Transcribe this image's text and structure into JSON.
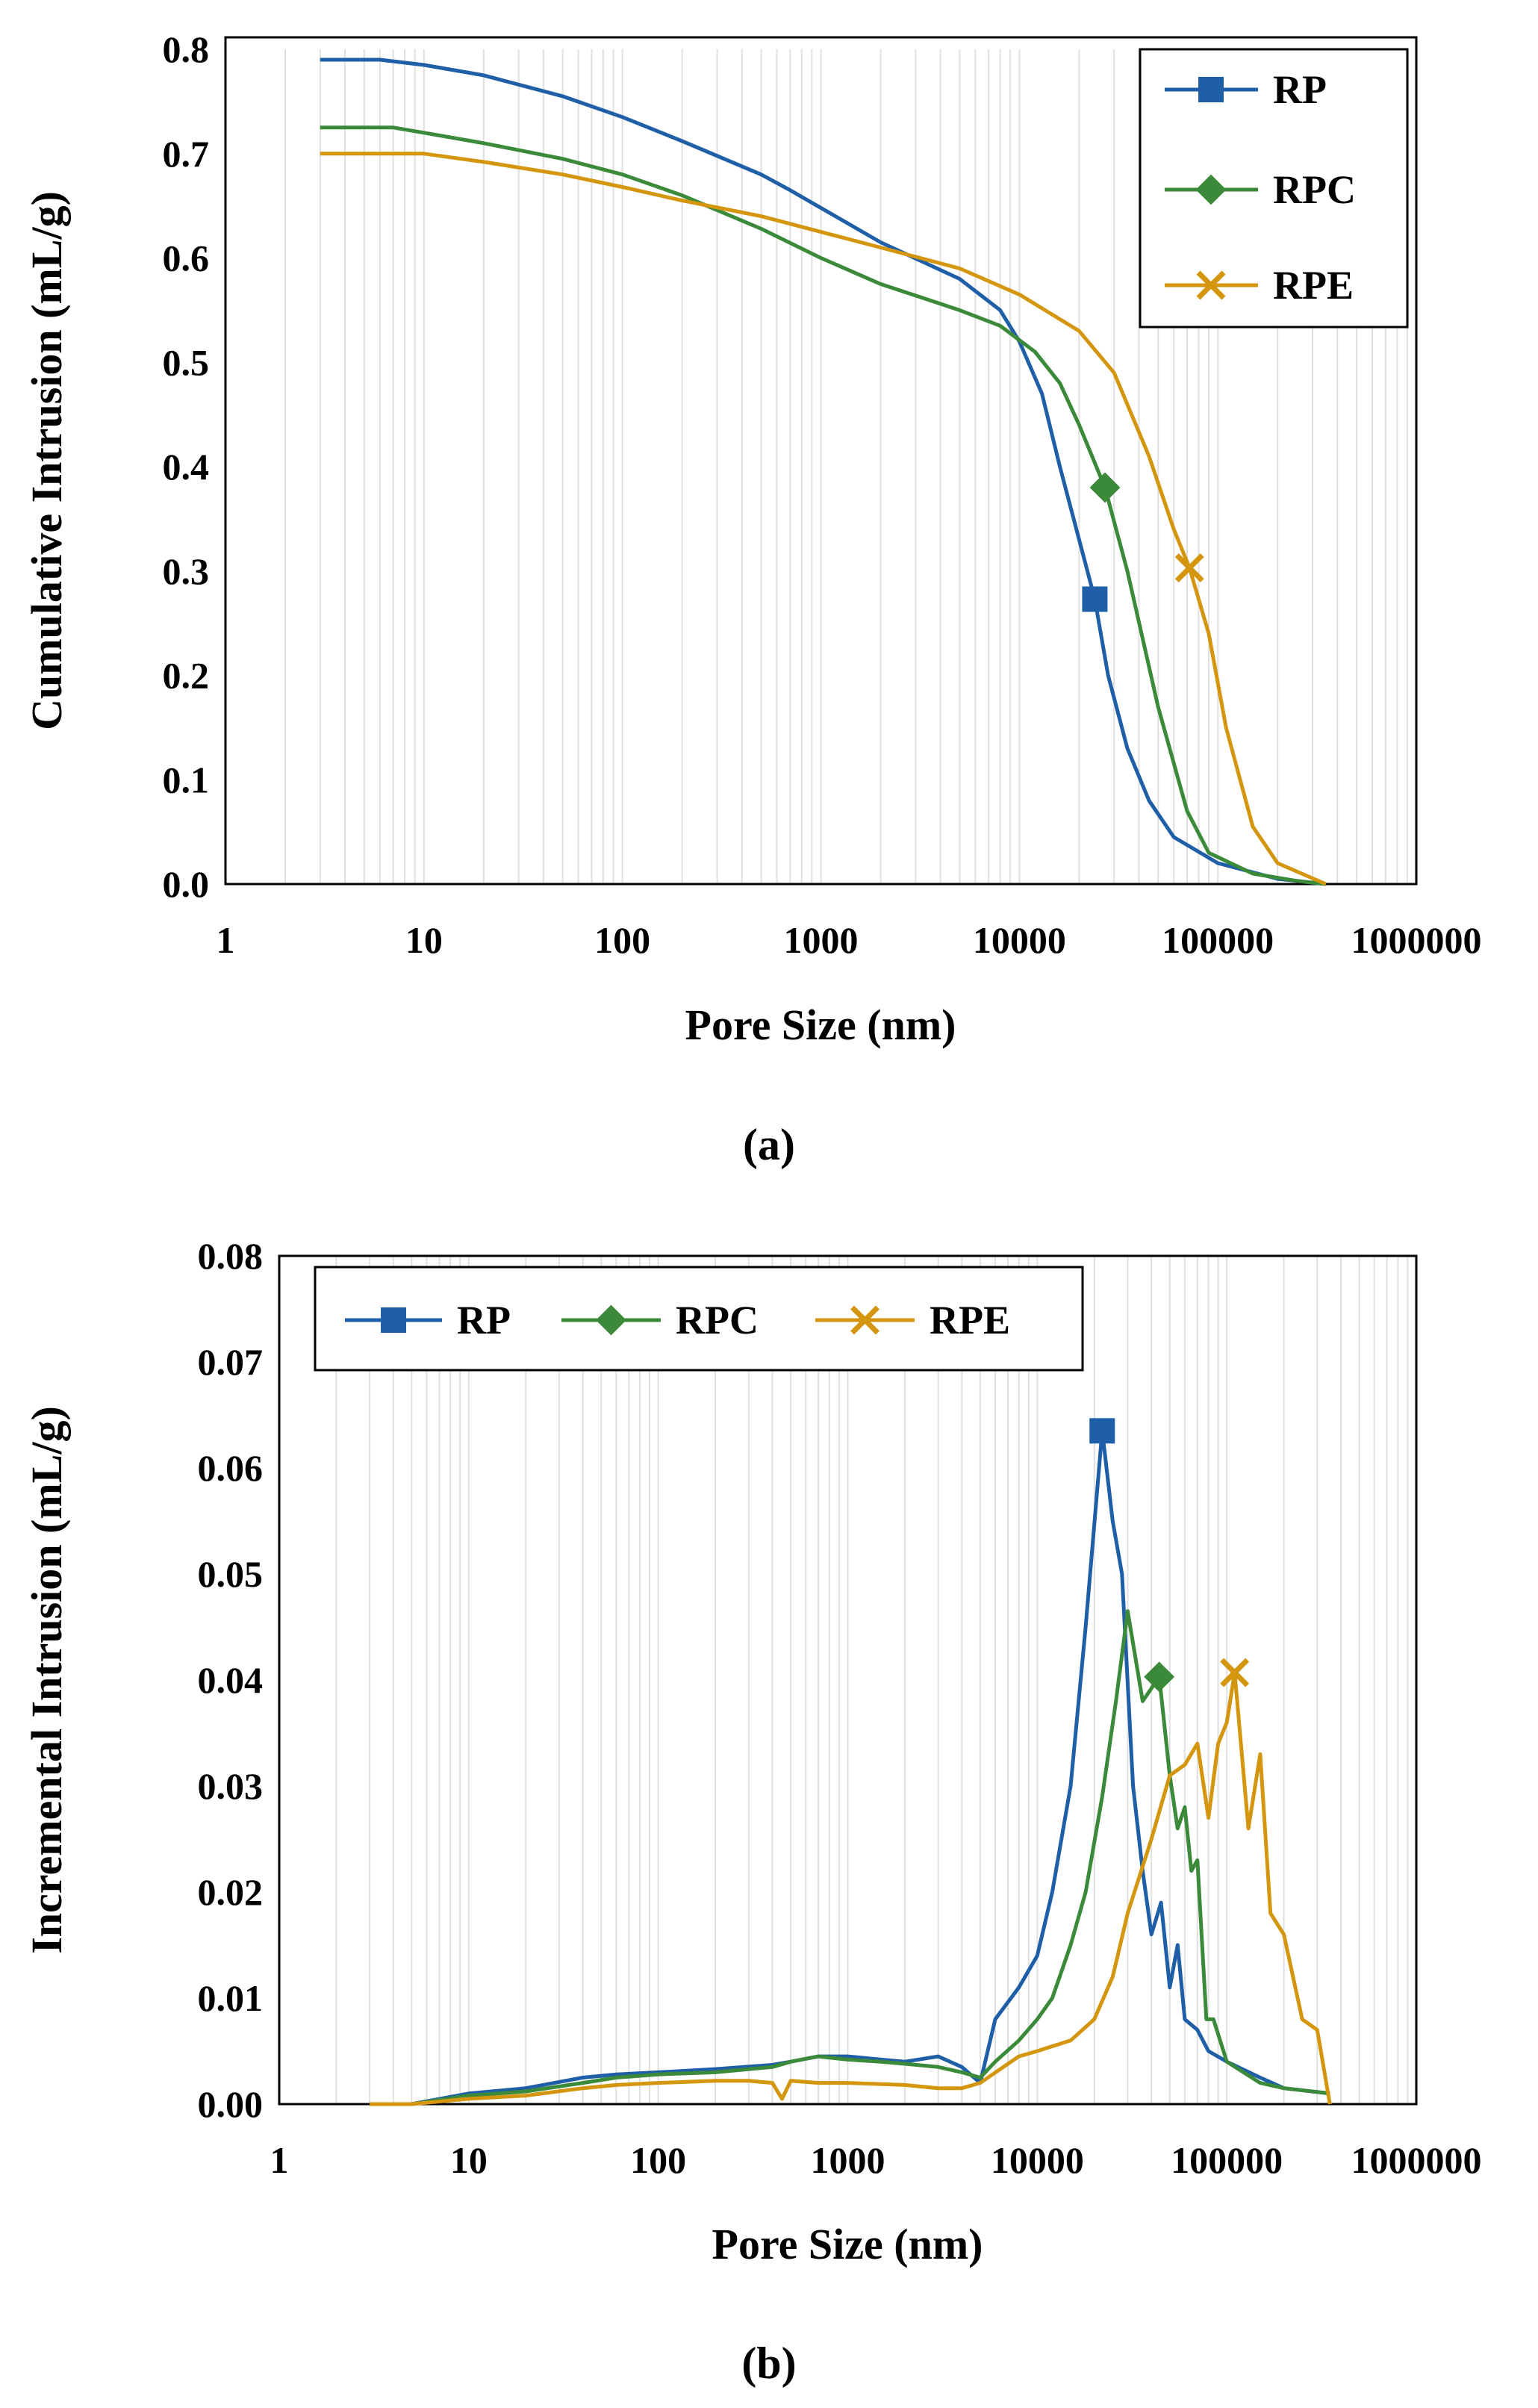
{
  "chart_data": [
    {
      "type": "line",
      "panel_label": "(a)",
      "xlabel": "Pore Size (nm)",
      "ylabel": "Cumulative Intrusion (mL/g)",
      "xscale": "log",
      "xlim": [
        1,
        1000000
      ],
      "ylim": [
        0,
        0.8
      ],
      "xticks": [
        1,
        10,
        100,
        1000,
        10000,
        100000,
        1000000
      ],
      "xtick_labels": [
        "1",
        "10",
        "100",
        "1000",
        "10000",
        "100000",
        "1000000"
      ],
      "yticks": [
        0,
        0.1,
        0.2,
        0.3,
        0.4,
        0.5,
        0.6,
        0.7,
        0.8
      ],
      "ytick_labels": [
        "0.0",
        "0.1",
        "0.2",
        "0.3",
        "0.4",
        "0.5",
        "0.6",
        "0.7",
        "0.8"
      ],
      "grid": true,
      "legend_position": "top-right",
      "series": [
        {
          "name": "RP",
          "color": "#1f5fa8",
          "marker": "square",
          "marker_at": [
            24000,
            0.273
          ],
          "x": [
            3,
            6,
            10,
            20,
            50,
            100,
            200,
            500,
            700,
            1000,
            2000,
            5000,
            8000,
            10000,
            13000,
            16000,
            20000,
            24000,
            28000,
            35000,
            45000,
            60000,
            100000,
            200000,
            350000
          ],
          "y": [
            0.79,
            0.79,
            0.785,
            0.775,
            0.755,
            0.735,
            0.712,
            0.68,
            0.665,
            0.648,
            0.615,
            0.58,
            0.55,
            0.52,
            0.47,
            0.4,
            0.33,
            0.273,
            0.2,
            0.13,
            0.08,
            0.045,
            0.02,
            0.005,
            0.0
          ]
        },
        {
          "name": "RPC",
          "color": "#3a8a3a",
          "marker": "diamond",
          "marker_at": [
            27000,
            0.38
          ],
          "x": [
            3,
            7,
            10,
            20,
            50,
            100,
            200,
            500,
            1000,
            2000,
            5000,
            8000,
            12000,
            16000,
            20000,
            27000,
            35000,
            50000,
            70000,
            90000,
            150000,
            250000,
            350000
          ],
          "y": [
            0.725,
            0.725,
            0.72,
            0.71,
            0.695,
            0.68,
            0.66,
            0.628,
            0.6,
            0.575,
            0.55,
            0.535,
            0.51,
            0.48,
            0.44,
            0.38,
            0.3,
            0.17,
            0.07,
            0.03,
            0.01,
            0.003,
            0.0
          ]
        },
        {
          "name": "RPE",
          "color": "#d4960e",
          "marker": "x",
          "marker_at": [
            72000,
            0.303
          ],
          "x": [
            3,
            10,
            20,
            50,
            100,
            200,
            500,
            1000,
            2000,
            5000,
            10000,
            20000,
            30000,
            45000,
            60000,
            72000,
            90000,
            110000,
            150000,
            200000,
            350000
          ],
          "y": [
            0.7,
            0.7,
            0.692,
            0.68,
            0.668,
            0.655,
            0.64,
            0.625,
            0.61,
            0.59,
            0.565,
            0.53,
            0.49,
            0.41,
            0.34,
            0.303,
            0.24,
            0.15,
            0.055,
            0.02,
            0.0
          ]
        }
      ]
    },
    {
      "type": "line",
      "panel_label": "(b)",
      "xlabel": "Pore Size (nm)",
      "ylabel": "Incremental Intrusion (mL/g)",
      "xscale": "log",
      "xlim": [
        1,
        1000000
      ],
      "ylim": [
        0,
        0.08
      ],
      "xticks": [
        1,
        10,
        100,
        1000,
        10000,
        100000,
        1000000
      ],
      "xtick_labels": [
        "1",
        "10",
        "100",
        "1000",
        "10000",
        "100000",
        "1000000"
      ],
      "yticks": [
        0,
        0.01,
        0.02,
        0.03,
        0.04,
        0.05,
        0.06,
        0.07,
        0.08
      ],
      "ytick_labels": [
        "0.00",
        "0.01",
        "0.02",
        "0.03",
        "0.04",
        "0.05",
        "0.06",
        "0.07",
        "0.08"
      ],
      "grid": true,
      "legend_position": "top-left",
      "series": [
        {
          "name": "RP",
          "color": "#1f5fa8",
          "marker": "square",
          "marker_at": [
            22000,
            0.0635
          ],
          "x": [
            3,
            5,
            10,
            20,
            40,
            60,
            100,
            200,
            400,
            500,
            700,
            1000,
            1500,
            2000,
            3000,
            4000,
            5000,
            6000,
            8000,
            10000,
            12000,
            15000,
            18000,
            22000,
            25000,
            28000,
            32000,
            36000,
            40000,
            45000,
            50000,
            55000,
            60000,
            70000,
            80000,
            100000,
            150000,
            200000,
            350000
          ],
          "y": [
            0,
            0,
            0.001,
            0.0015,
            0.0025,
            0.0028,
            0.003,
            0.0033,
            0.0037,
            0.004,
            0.0045,
            0.0045,
            0.0042,
            0.004,
            0.0045,
            0.0035,
            0.002,
            0.008,
            0.011,
            0.014,
            0.02,
            0.03,
            0.045,
            0.0635,
            0.055,
            0.05,
            0.03,
            0.022,
            0.016,
            0.019,
            0.011,
            0.015,
            0.008,
            0.007,
            0.005,
            0.004,
            0.0025,
            0.0015,
            0.001
          ]
        },
        {
          "name": "RPC",
          "color": "#3a8a3a",
          "marker": "diamond",
          "marker_at": [
            44000,
            0.0403
          ],
          "x": [
            3,
            5,
            10,
            20,
            40,
            60,
            100,
            200,
            400,
            500,
            700,
            1000,
            1500,
            2000,
            3000,
            4000,
            5000,
            6000,
            8000,
            10000,
            12000,
            15000,
            18000,
            22000,
            26000,
            30000,
            36000,
            44000,
            50000,
            55000,
            60000,
            65000,
            70000,
            78000,
            85000,
            100000,
            150000,
            200000,
            350000
          ],
          "y": [
            0,
            0,
            0.0008,
            0.0012,
            0.002,
            0.0025,
            0.0028,
            0.003,
            0.0035,
            0.004,
            0.0045,
            0.0042,
            0.004,
            0.0038,
            0.0035,
            0.003,
            0.0025,
            0.004,
            0.006,
            0.008,
            0.01,
            0.015,
            0.02,
            0.029,
            0.038,
            0.0465,
            0.038,
            0.0403,
            0.031,
            0.026,
            0.028,
            0.022,
            0.023,
            0.008,
            0.008,
            0.004,
            0.002,
            0.0015,
            0.001
          ]
        },
        {
          "name": "RPE",
          "color": "#d4960e",
          "marker": "x",
          "marker_at": [
            110000,
            0.0407
          ],
          "x": [
            3,
            5,
            10,
            20,
            40,
            60,
            100,
            200,
            300,
            400,
            450,
            500,
            700,
            1000,
            2000,
            3000,
            4000,
            5000,
            8000,
            10000,
            15000,
            20000,
            25000,
            30000,
            40000,
            50000,
            60000,
            70000,
            80000,
            90000,
            100000,
            110000,
            130000,
            150000,
            170000,
            200000,
            250000,
            300000,
            350000
          ],
          "y": [
            0,
            0,
            0.0005,
            0.0008,
            0.0015,
            0.0018,
            0.002,
            0.0022,
            0.0022,
            0.002,
            0.0005,
            0.0022,
            0.002,
            0.002,
            0.0018,
            0.0015,
            0.0015,
            0.002,
            0.0045,
            0.005,
            0.006,
            0.008,
            0.012,
            0.018,
            0.025,
            0.031,
            0.032,
            0.034,
            0.027,
            0.034,
            0.036,
            0.0407,
            0.026,
            0.033,
            0.018,
            0.016,
            0.008,
            0.007,
            0.0
          ]
        }
      ]
    }
  ]
}
